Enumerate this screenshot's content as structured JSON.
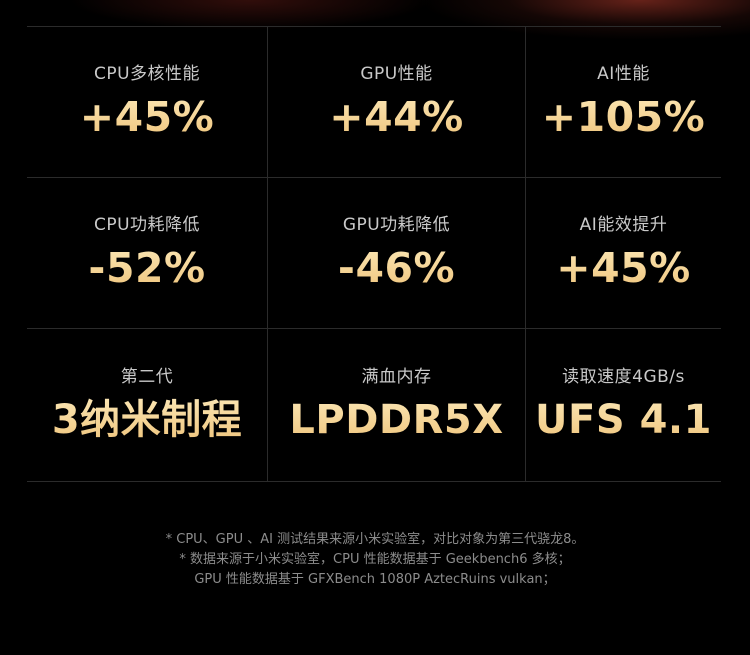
{
  "specs": {
    "rows": [
      [
        {
          "label": "CPU多核性能",
          "value": "+45%"
        },
        {
          "label": "GPU性能",
          "value": "+44%"
        },
        {
          "label": "AI性能",
          "value": "+105%"
        }
      ],
      [
        {
          "label": "CPU功耗降低",
          "value": "-52%"
        },
        {
          "label": "GPU功耗降低",
          "value": "-46%"
        },
        {
          "label": "AI能效提升",
          "value": "+45%"
        }
      ],
      [
        {
          "label": "第二代",
          "value": "3纳米制程"
        },
        {
          "label": "满血内存",
          "value": "LPDDR5X"
        },
        {
          "label": "读取速度4GB/s",
          "value": "UFS 4.1"
        }
      ]
    ]
  },
  "footnotes": {
    "line1": "* CPU、GPU 、AI 测试结果来源小米实验室，对比对象为第三代骁龙8。",
    "line2": "* 数据来源于小米实验室，CPU 性能数据基于 Geekbench6 多核；",
    "line3": "GPU 性能数据基于 GFXBench 1080P AztecRuins vulkan；"
  },
  "colors": {
    "background": "#000000",
    "label": "#c9c9c9",
    "value_gold": "#f3d393",
    "footnote": "#8c8c8c",
    "divider": "#2b2b2b"
  }
}
